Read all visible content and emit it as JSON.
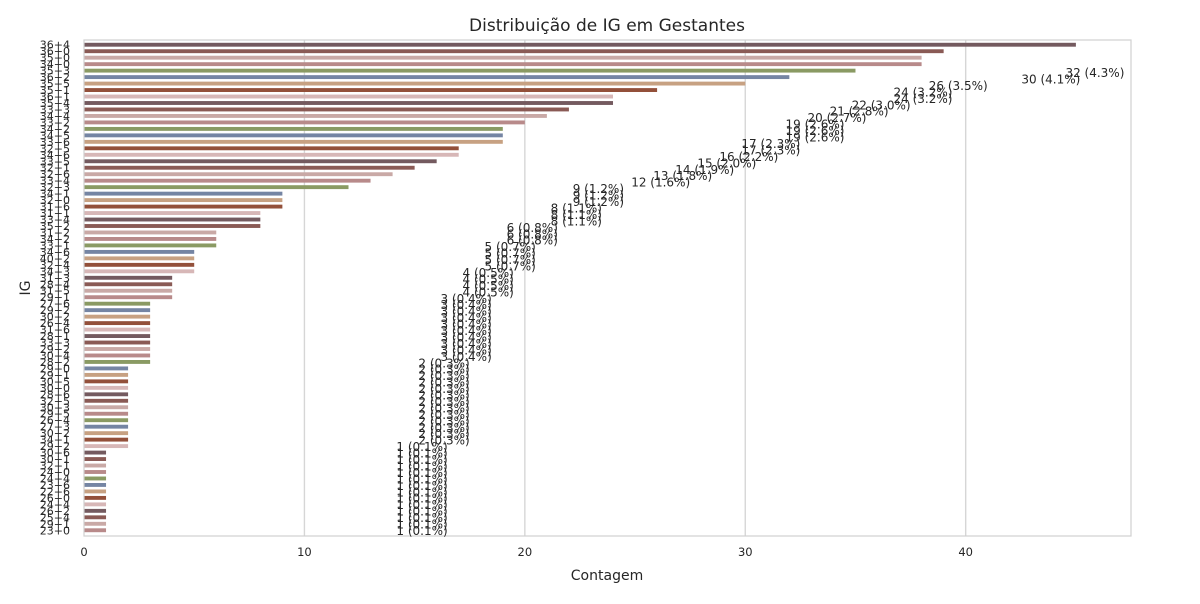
{
  "chart_data": {
    "type": "bar",
    "orientation": "horizontal",
    "title": "Distribuição de IG em Gestantes",
    "xlabel": "Contagem",
    "ylabel": "IG",
    "xlim": [
      0,
      47.5
    ],
    "xticks": [
      0,
      10,
      20,
      30,
      40
    ],
    "grid": "x-axis vertical lines",
    "palette": [
      "#745a5f",
      "#8a5a55",
      "#c9a9a6",
      "#b88a8a",
      "#8a9a63",
      "#7585a3",
      "#c7a182",
      "#93503a",
      "#d7b7b7"
    ],
    "categories": [
      "36+4",
      "36+0",
      "35+0",
      "34+0",
      "35+3",
      "36+2",
      "35+5",
      "35+1",
      "36+1",
      "35+4",
      "33+3",
      "34+4",
      "33+2",
      "34+2",
      "34+5",
      "33+6",
      "32+5",
      "34+6",
      "33+5",
      "32+1",
      "32+6",
      "33+4",
      "32+3",
      "34+1",
      "32+0",
      "31+6",
      "31+1",
      "33+4",
      "35+2",
      "31+2",
      "34+2",
      "33+1",
      "34+6",
      "40+2",
      "32+4",
      "34+3",
      "31+3",
      "28+4",
      "31+5",
      "29+1",
      "27+6",
      "29+2",
      "30+2",
      "26+4",
      "31+6",
      "28+1",
      "33+3",
      "29+2",
      "30+4",
      "28+2",
      "29+0",
      "29+1",
      "30+5",
      "30+0",
      "28+6",
      "32+5",
      "30+3",
      "29+5",
      "26+4",
      "27+3",
      "30+2",
      "34+1",
      "29+2",
      "30+6",
      "30+1",
      "32+1",
      "24+0",
      "24+4",
      "23+6",
      "22+6",
      "26+0",
      "24+4",
      "26+2",
      "25+4",
      "29+1",
      "23+0"
    ],
    "values": [
      45,
      39,
      38,
      38,
      35,
      32,
      30,
      26,
      24,
      24,
      22,
      21,
      20,
      19,
      19,
      19,
      17,
      17,
      16,
      15,
      14,
      13,
      12,
      9,
      9,
      9,
      8,
      8,
      8,
      6,
      6,
      6,
      5,
      5,
      5,
      5,
      4,
      4,
      4,
      4,
      3,
      3,
      3,
      3,
      3,
      3,
      3,
      3,
      3,
      3,
      2,
      2,
      2,
      2,
      2,
      2,
      2,
      2,
      2,
      2,
      2,
      2,
      2,
      1,
      1,
      1,
      1,
      1,
      1,
      1,
      1,
      1,
      1,
      1,
      1,
      1
    ],
    "annotations": [
      {
        "text": "32 (4.3%)",
        "x": 47.2
      },
      {
        "text": "30 (4.1%)",
        "x": 45.2
      },
      {
        "text": "26 (3.5%)",
        "x": 41.0
      },
      {
        "text": "24 (3.2%)",
        "x": 39.4
      },
      {
        "text": "24 (3.2%)",
        "x": 39.4
      },
      {
        "text": "22 (3.0%)",
        "x": 37.5
      },
      {
        "text": "21 (2.8%)",
        "x": 36.5
      },
      {
        "text": "20 (2.7%)",
        "x": 35.5
      },
      {
        "text": "19 (2.6%)",
        "x": 34.5
      },
      {
        "text": "19 (2.6%)",
        "x": 34.5
      },
      {
        "text": "19 (2.6%)",
        "x": 34.5
      },
      {
        "text": "17 (2.3%)",
        "x": 32.5
      },
      {
        "text": "17 (2.3%)",
        "x": 32.5
      },
      {
        "text": "16 (2.2%)",
        "x": 31.5
      },
      {
        "text": "15 (2.0%)",
        "x": 30.5
      },
      {
        "text": "14 (1.9%)",
        "x": 29.5
      },
      {
        "text": "13 (1.8%)",
        "x": 28.5
      },
      {
        "text": "12 (1.6%)",
        "x": 27.5
      },
      {
        "text": "9 (1.2%)",
        "x": 24.5
      },
      {
        "text": "9 (1.2%)",
        "x": 24.5
      },
      {
        "text": "9 (1.2%)",
        "x": 24.5
      },
      {
        "text": "8 (1.1%)",
        "x": 23.5
      },
      {
        "text": "8 (1.1%)",
        "x": 23.5
      },
      {
        "text": "8 (1.1%)",
        "x": 23.5
      },
      {
        "text": "6 (0.8%)",
        "x": 21.5
      },
      {
        "text": "6 (0.8%)",
        "x": 21.5
      },
      {
        "text": "6 (0.8%)",
        "x": 21.5
      },
      {
        "text": "5 (0.7%)",
        "x": 20.5
      },
      {
        "text": "5 (0.7%)",
        "x": 20.5
      },
      {
        "text": "5 (0.7%)",
        "x": 20.5
      },
      {
        "text": "5 (0.7%)",
        "x": 20.5
      },
      {
        "text": "4 (0.5%)",
        "x": 19.5
      },
      {
        "text": "4 (0.5%)",
        "x": 19.5
      },
      {
        "text": "4 (0.5%)",
        "x": 19.5
      },
      {
        "text": "4 (0.5%)",
        "x": 19.5
      },
      {
        "text": "3 (0.4%)",
        "x": 18.5
      },
      {
        "text": "3 (0.4%)",
        "x": 18.5
      },
      {
        "text": "3 (0.4%)",
        "x": 18.5
      },
      {
        "text": "3 (0.4%)",
        "x": 18.5
      },
      {
        "text": "3 (0.4%)",
        "x": 18.5
      },
      {
        "text": "3 (0.4%)",
        "x": 18.5
      },
      {
        "text": "3 (0.4%)",
        "x": 18.5
      },
      {
        "text": "3 (0.4%)",
        "x": 18.5
      },
      {
        "text": "3 (0.4%)",
        "x": 18.5
      },
      {
        "text": "3 (0.4%)",
        "x": 18.5
      },
      {
        "text": "2 (0.3%)",
        "x": 17.5
      },
      {
        "text": "2 (0.3%)",
        "x": 17.5
      },
      {
        "text": "2 (0.3%)",
        "x": 17.5
      },
      {
        "text": "2 (0.3%)",
        "x": 17.5
      },
      {
        "text": "2 (0.3%)",
        "x": 17.5
      },
      {
        "text": "2 (0.3%)",
        "x": 17.5
      },
      {
        "text": "2 (0.3%)",
        "x": 17.5
      },
      {
        "text": "2 (0.3%)",
        "x": 17.5
      },
      {
        "text": "2 (0.3%)",
        "x": 17.5
      },
      {
        "text": "2 (0.3%)",
        "x": 17.5
      },
      {
        "text": "2 (0.3%)",
        "x": 17.5
      },
      {
        "text": "2 (0.3%)",
        "x": 17.5
      },
      {
        "text": "2 (0.3%)",
        "x": 17.5
      },
      {
        "text": "1 (0.1%)",
        "x": 16.5
      },
      {
        "text": "1 (0.1%)",
        "x": 16.5
      },
      {
        "text": "1 (0.1%)",
        "x": 16.5
      },
      {
        "text": "1 (0.1%)",
        "x": 16.5
      },
      {
        "text": "1 (0.1%)",
        "x": 16.5
      },
      {
        "text": "1 (0.1%)",
        "x": 16.5
      },
      {
        "text": "1 (0.1%)",
        "x": 16.5
      },
      {
        "text": "1 (0.1%)",
        "x": 16.5
      },
      {
        "text": "1 (0.1%)",
        "x": 16.5
      },
      {
        "text": "1 (0.1%)",
        "x": 16.5
      },
      {
        "text": "1 (0.1%)",
        "x": 16.5
      },
      {
        "text": "1 (0.1%)",
        "x": 16.5
      },
      {
        "text": "1 (0.1%)",
        "x": 16.5
      },
      {
        "text": "1 (0.1%)",
        "x": 16.5
      }
    ]
  }
}
